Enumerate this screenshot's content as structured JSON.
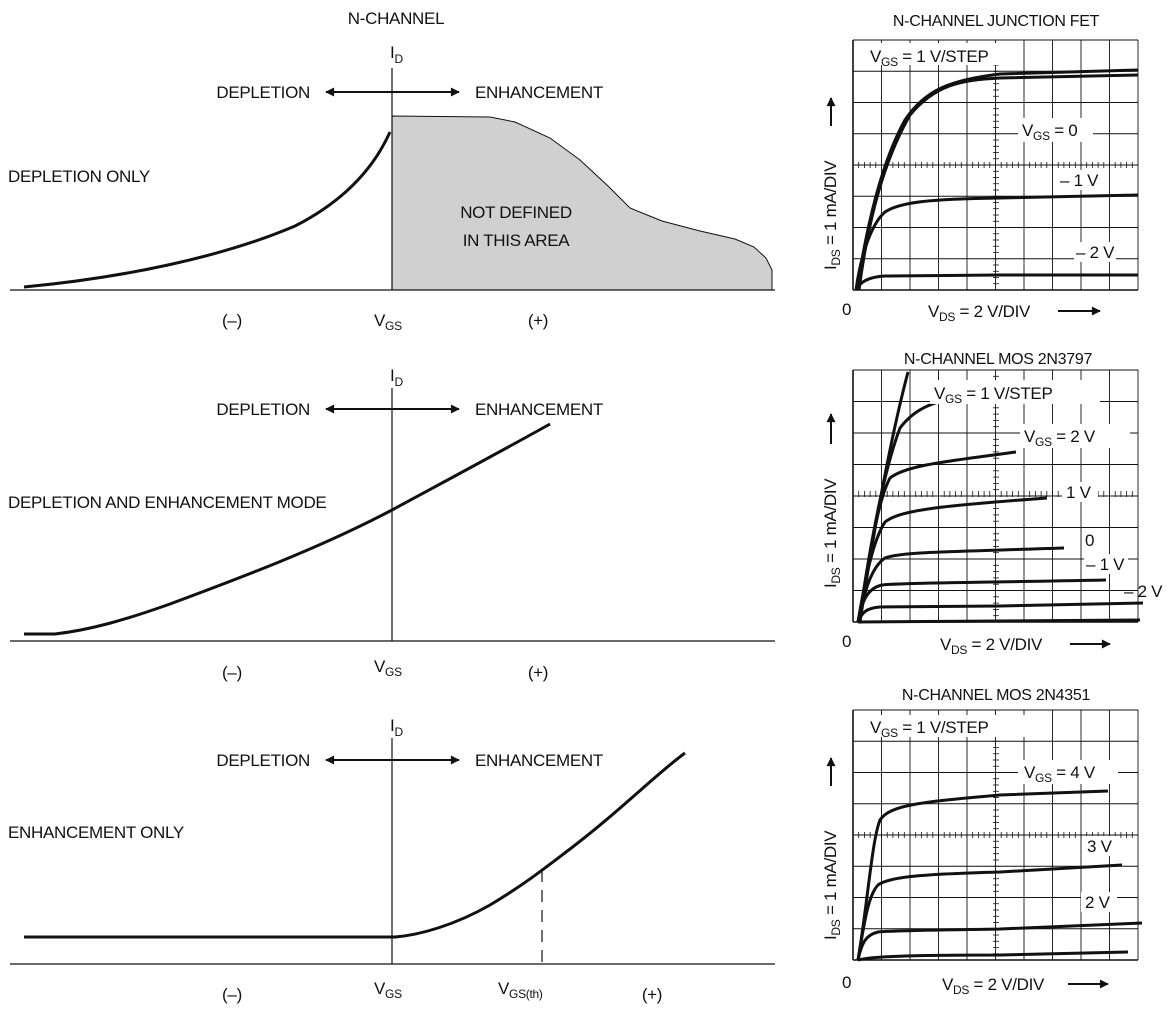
{
  "header": {
    "title": "N-CHANNEL"
  },
  "panels": [
    {
      "mode_label": "DEPLETION ONLY",
      "id_label": "I",
      "id_sub": "D",
      "depletion": "DEPLETION",
      "enhancement": "ENHANCEMENT",
      "note_line1": "NOT DEFINED",
      "note_line2": "IN THIS AREA",
      "neg": "(–)",
      "vgs": "V",
      "vgs_sub": "GS",
      "pos": "(+)"
    },
    {
      "mode_label": "DEPLETION AND ENHANCEMENT MODE",
      "id_label": "I",
      "id_sub": "D",
      "depletion": "DEPLETION",
      "enhancement": "ENHANCEMENT",
      "neg": "(–)",
      "vgs": "V",
      "vgs_sub": "GS",
      "pos": "(+)"
    },
    {
      "mode_label": "ENHANCEMENT ONLY",
      "id_label": "I",
      "id_sub": "D",
      "depletion": "DEPLETION",
      "enhancement": "ENHANCEMENT",
      "neg": "(–)",
      "vgs": "V",
      "vgs_sub": "GS",
      "vth": "V",
      "vth_sub": "GS(th)",
      "pos": "(+)"
    }
  ],
  "curves": [
    {
      "title": "N-CHANNEL JUNCTION FET",
      "step_label": "V",
      "step_sub": "GS",
      "step_rest": " = 1 V/STEP",
      "curve_labels": [
        {
          "main": "V",
          "sub": "GS",
          "rest": " = 0"
        },
        {
          "main": "– 1 V"
        },
        {
          "main": "– 2 V"
        }
      ],
      "y_label": "I",
      "y_sub": "DS",
      "y_rest": " = 1 mA/DIV",
      "x_label": "V",
      "x_sub": "DS",
      "x_rest": " = 2 V/DIV",
      "origin": "0"
    },
    {
      "title": "N-CHANNEL MOS 2N3797",
      "step_label": "V",
      "step_sub": "GS",
      "step_rest": " = 1 V/STEP",
      "curve_labels": [
        {
          "main": "V",
          "sub": "GS",
          "rest": " = 2 V"
        },
        {
          "main": "1 V"
        },
        {
          "main": "0"
        },
        {
          "main": "– 1 V"
        },
        {
          "main": "– 2 V"
        }
      ],
      "y_label": "I",
      "y_sub": "DS",
      "y_rest": " = 1 mA/DIV",
      "x_label": "V",
      "x_sub": "DS",
      "x_rest": " = 2 V/DIV",
      "origin": "0"
    },
    {
      "title": "N-CHANNEL MOS 2N4351",
      "step_label": "V",
      "step_sub": "GS",
      "step_rest": " = 1 V/STEP",
      "curve_labels": [
        {
          "main": "V",
          "sub": "GS",
          "rest": " = 4 V"
        },
        {
          "main": "3 V"
        },
        {
          "main": "2 V"
        }
      ],
      "y_label": "I",
      "y_sub": "DS",
      "y_rest": " = 1 mA/DIV",
      "x_label": "V",
      "x_sub": "DS",
      "x_rest": " = 2 V/DIV",
      "origin": "0"
    }
  ]
}
